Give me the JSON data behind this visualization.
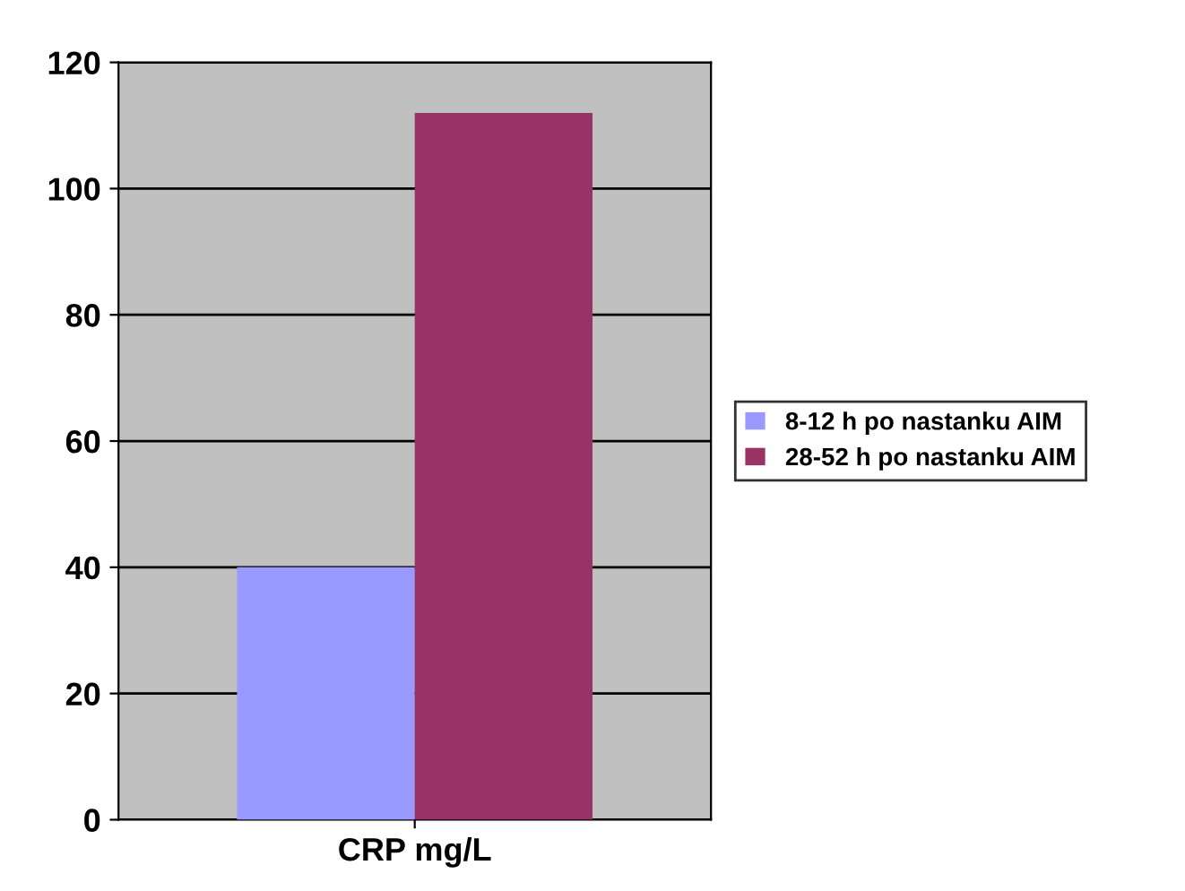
{
  "chart_data": {
    "type": "bar",
    "categories": [
      "CRP mg/L"
    ],
    "series": [
      {
        "name": "8-12 h po nastanku AIM",
        "color": "#9999ff",
        "values": [
          40
        ]
      },
      {
        "name": "28-52 h po nastanku AIM",
        "color": "#993366",
        "values": [
          112
        ]
      }
    ],
    "ylim": [
      0,
      120
    ],
    "yticks": [
      0,
      20,
      40,
      60,
      80,
      100,
      120
    ],
    "grid": "y",
    "legend": "right"
  }
}
